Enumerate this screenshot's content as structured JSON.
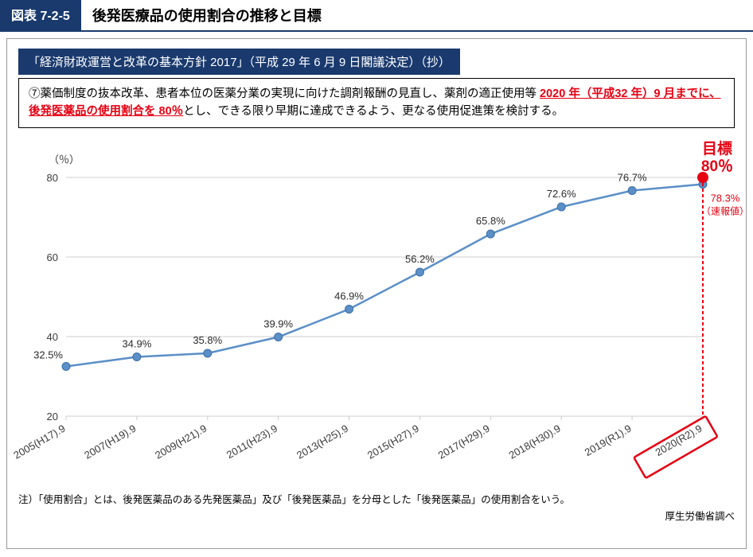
{
  "header": {
    "tag": "図表 7-2-5",
    "title": "後発医療品の使用割合の推移と目標"
  },
  "policy": {
    "caption": "「経済財政運営と改革の基本方針 2017」（平成 29 年 6 月 9 日閣議決定）（抄）",
    "line1_prefix": "⑦薬価制度の抜本改革、患者本位の医薬分業の実現に向けた調剤報酬の見直し、薬剤の適正使用等",
    "line2_red": "2020 年（平成32 年）9 月までに、後発医薬品の使用割合を 80％",
    "line2_suffix": "とし、できる限り早期に達成できるよう、更なる使用促進策を検討する。"
  },
  "chart": {
    "type": "line",
    "y_unit_label": "（％）",
    "ylim": [
      20,
      80
    ],
    "yticks": [
      20,
      40,
      60,
      80
    ],
    "x_labels": [
      "2005(H17).9",
      "2007(H19).9",
      "2009(H21).9",
      "2011(H23).9",
      "2013(H25).9",
      "2015(H27).9",
      "2017(H29).9",
      "2018(H30).9",
      "2019(R1).9",
      "2020(R2).9"
    ],
    "values": [
      32.5,
      34.9,
      35.8,
      39.9,
      46.9,
      56.2,
      65.8,
      72.6,
      76.7,
      78.3
    ],
    "value_labels": [
      "32.5%",
      "34.9%",
      "35.8%",
      "39.9%",
      "46.9%",
      "56.2%",
      "65.8%",
      "72.6%",
      "76.7%",
      "78.3%"
    ],
    "preliminary_label": "（速報値）",
    "target_value": 80,
    "target_label_top": "目標",
    "target_label_bottom": "80％",
    "colors": {
      "line": "#5b8fc7",
      "marker_fill": "#5b8fc7",
      "marker_stroke": "#3b6fa7",
      "grid": "#cccccc",
      "axis_text": "#3a3a3a",
      "target": "#e60012",
      "background": "#ffffff",
      "value_label": "#2a2a2a"
    },
    "line_width": 2.5,
    "marker_radius": 5,
    "target_marker_radius": 7,
    "label_fontsize": 13,
    "axis_fontsize": 13,
    "target_fontsize": 19
  },
  "footnote": "注）「使用割合」とは、後発医薬品のある先発医薬品」及び「後発医薬品」を分母とした「後発医薬品」の使用割合をいう。",
  "source": "厚生労働省調べ"
}
